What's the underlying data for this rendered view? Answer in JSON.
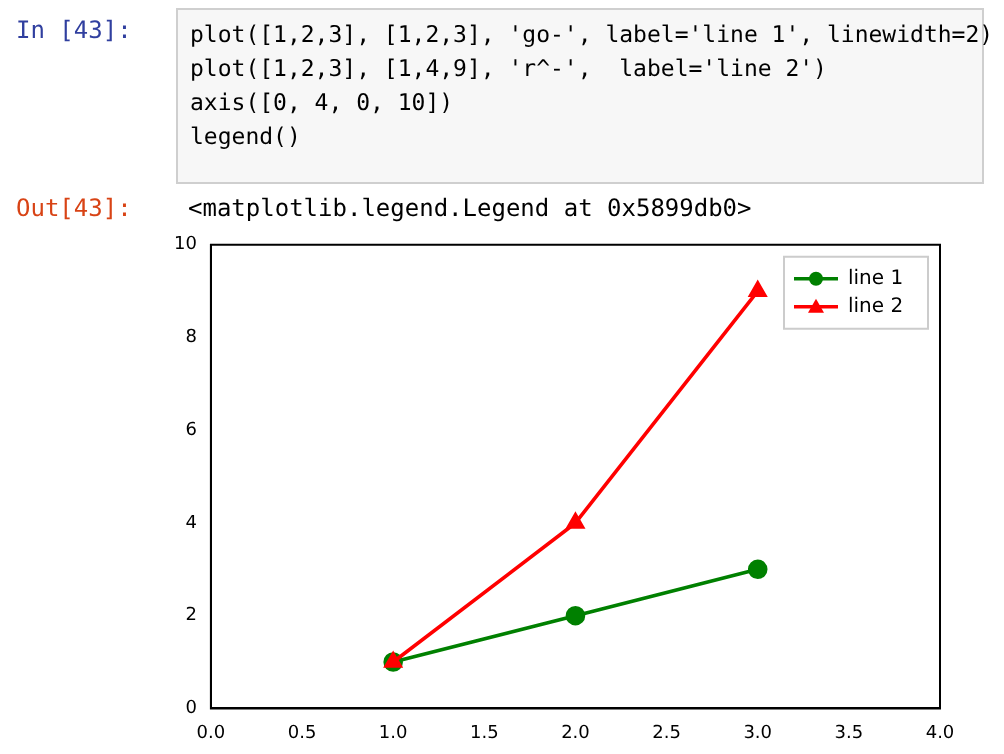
{
  "chart_data": {
    "type": "line",
    "x": [
      1,
      2,
      3
    ],
    "series": [
      {
        "name": "line 1",
        "color": "#008000",
        "values": [
          1,
          2,
          3
        ],
        "marker": "circle"
      },
      {
        "name": "line 2",
        "color": "#ff0000",
        "values": [
          1,
          4,
          9
        ],
        "marker": "triangle"
      }
    ],
    "xlim": [
      0,
      4
    ],
    "xticks": [
      {
        "value": 0,
        "label": "0.0"
      },
      0.5,
      {
        "value": 1,
        "label": "1.0"
      },
      1.5,
      {
        "value": 2,
        "label": "2.0"
      },
      2.5,
      {
        "value": 3,
        "label": "3.0"
      },
      3.5,
      {
        "value": 4,
        "label": "4.0"
      }
    ],
    "ylim": [
      0,
      10
    ],
    "yticks": [
      0,
      2,
      4,
      6,
      8,
      10
    ],
    "grid": false,
    "legend": "top right",
    "line_style": "solid",
    "annotations": [
      "In [43]:",
      "plot([1,2,3], [1,2,3], 'go-', label='line 1', linewidth=2)",
      "plot([1,2,3], [1,4,9], 'r^-',  label='line 2')",
      "axis([0, 4, 0, 10])",
      "legend()",
      "Out[43]:",
      "<matplotlib.legend.Legend at 0x5899db0>"
    ]
  }
}
